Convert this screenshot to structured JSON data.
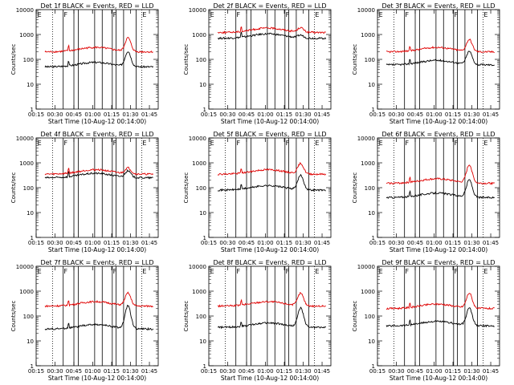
{
  "chart_data": [
    {
      "type": "line",
      "title": "Det 1f BLACK = Events, RED = LLD",
      "xlabel": "Start Time (10-Aug-12 00:14:00)",
      "ylabel": "Counts/sec",
      "ylim": [
        1,
        10000
      ],
      "yscale": "log",
      "xlim": [
        "00:15",
        "01:52"
      ],
      "series": [
        {
          "color": "#000000",
          "baseline": 50,
          "peak": 200
        },
        {
          "color": "#e00000",
          "baseline": 200,
          "peak": 700
        }
      ],
      "marker_labels": [
        "E",
        "F",
        "F",
        "E"
      ]
    },
    {
      "type": "line",
      "title": "Det 2f BLACK = Events, RED = LLD",
      "xlabel": "Start Time (10-Aug-12 00:14:00)",
      "ylabel": "Counts/sec",
      "ylim": [
        1,
        10000
      ],
      "yscale": "log",
      "xlim": [
        "00:15",
        "01:52"
      ],
      "series": [
        {
          "color": "#000000",
          "baseline": 700,
          "peak": 900
        },
        {
          "color": "#e00000",
          "baseline": 1200,
          "peak": 1800
        }
      ],
      "marker_labels": [
        "E",
        "F",
        "F",
        "E"
      ]
    },
    {
      "type": "line",
      "title": "Det 3f BLACK = Events, RED = LLD",
      "xlabel": "Start Time (10-Aug-12 00:14:00)",
      "ylabel": "Counts/sec",
      "ylim": [
        1,
        10000
      ],
      "yscale": "log",
      "xlim": [
        "00:15",
        "01:52"
      ],
      "series": [
        {
          "color": "#000000",
          "baseline": 60,
          "peak": 200
        },
        {
          "color": "#e00000",
          "baseline": 200,
          "peak": 600
        }
      ],
      "marker_labels": [
        "E",
        "F",
        "F",
        "E"
      ]
    },
    {
      "type": "line",
      "title": "Det 4f BLACK = Events, RED = LLD",
      "xlabel": "Start Time (10-Aug-12 00:14:00)",
      "ylabel": "Counts/sec",
      "ylim": [
        1,
        10000
      ],
      "yscale": "log",
      "xlim": [
        "00:15",
        "01:52"
      ],
      "series": [
        {
          "color": "#000000",
          "baseline": 250,
          "peak": 450
        },
        {
          "color": "#e00000",
          "baseline": 350,
          "peak": 600
        }
      ],
      "marker_labels": [
        "E",
        "F",
        "F",
        "E"
      ]
    },
    {
      "type": "line",
      "title": "Det 5f BLACK = Events, RED = LLD",
      "xlabel": "Start Time (10-Aug-12 00:14:00)",
      "ylabel": "Counts/sec",
      "ylim": [
        1,
        10000
      ],
      "yscale": "log",
      "xlim": [
        "00:15",
        "01:52"
      ],
      "series": [
        {
          "color": "#000000",
          "baseline": 80,
          "peak": 300
        },
        {
          "color": "#e00000",
          "baseline": 350,
          "peak": 900
        }
      ],
      "marker_labels": [
        "E",
        "F",
        "F",
        "E"
      ]
    },
    {
      "type": "line",
      "title": "Det 6f BLACK = Events, RED = LLD",
      "xlabel": "Start Time (10-Aug-12 00:14:00)",
      "ylabel": "Counts/sec",
      "ylim": [
        1,
        10000
      ],
      "yscale": "log",
      "xlim": [
        "00:15",
        "01:52"
      ],
      "series": [
        {
          "color": "#000000",
          "baseline": 40,
          "peak": 200
        },
        {
          "color": "#e00000",
          "baseline": 150,
          "peak": 800
        }
      ],
      "marker_labels": [
        "E",
        "F",
        "F",
        "E"
      ]
    },
    {
      "type": "line",
      "title": "Det 7f BLACK = Events, RED = LLD",
      "xlabel": "Start Time (10-Aug-12 00:14:00)",
      "ylabel": "Counts/sec",
      "ylim": [
        1,
        10000
      ],
      "yscale": "log",
      "xlim": [
        "00:15",
        "01:52"
      ],
      "series": [
        {
          "color": "#000000",
          "baseline": 30,
          "peak": 250
        },
        {
          "color": "#e00000",
          "baseline": 250,
          "peak": 800
        }
      ],
      "marker_labels": [
        "E",
        "F",
        "F",
        "E"
      ]
    },
    {
      "type": "line",
      "title": "Det 8f BLACK = Events, RED = LLD",
      "xlabel": "Start Time (10-Aug-12 00:14:00)",
      "ylabel": "Counts/sec",
      "ylim": [
        1,
        10000
      ],
      "yscale": "log",
      "xlim": [
        "00:15",
        "01:52"
      ],
      "series": [
        {
          "color": "#000000",
          "baseline": 35,
          "peak": 200
        },
        {
          "color": "#e00000",
          "baseline": 250,
          "peak": 800
        }
      ],
      "marker_labels": [
        "E",
        "F",
        "F",
        "E"
      ]
    },
    {
      "type": "line",
      "title": "Det 9f BLACK = Events, RED = LLD",
      "xlabel": "Start Time (10-Aug-12 00:14:00)",
      "ylabel": "Counts/sec",
      "ylim": [
        1,
        10000
      ],
      "yscale": "log",
      "xlim": [
        "00:15",
        "01:52"
      ],
      "series": [
        {
          "color": "#000000",
          "baseline": 40,
          "peak": 200
        },
        {
          "color": "#e00000",
          "baseline": 200,
          "peak": 800
        }
      ],
      "marker_labels": [
        "E",
        "F",
        "F",
        "E"
      ]
    }
  ],
  "common": {
    "x_ticks": [
      "00:15",
      "00:30",
      "00:45",
      "01:00",
      "01:15",
      "01:30",
      "01:45"
    ],
    "x_tick_minutes": [
      15,
      30,
      45,
      60,
      75,
      90,
      105
    ],
    "x_range_minutes": [
      15,
      112
    ],
    "y_ticks": [
      "1",
      "10",
      "100",
      "1000",
      "10000"
    ],
    "y_tick_values": [
      1,
      10,
      100,
      1000,
      10000
    ],
    "solid_marker_minutes": [
      36.5,
      45,
      48.5,
      61.5,
      67.5,
      75.5,
      78.5,
      84.5,
      94.5
    ],
    "dotted_marker_minutes": [
      28,
      99
    ]
  }
}
